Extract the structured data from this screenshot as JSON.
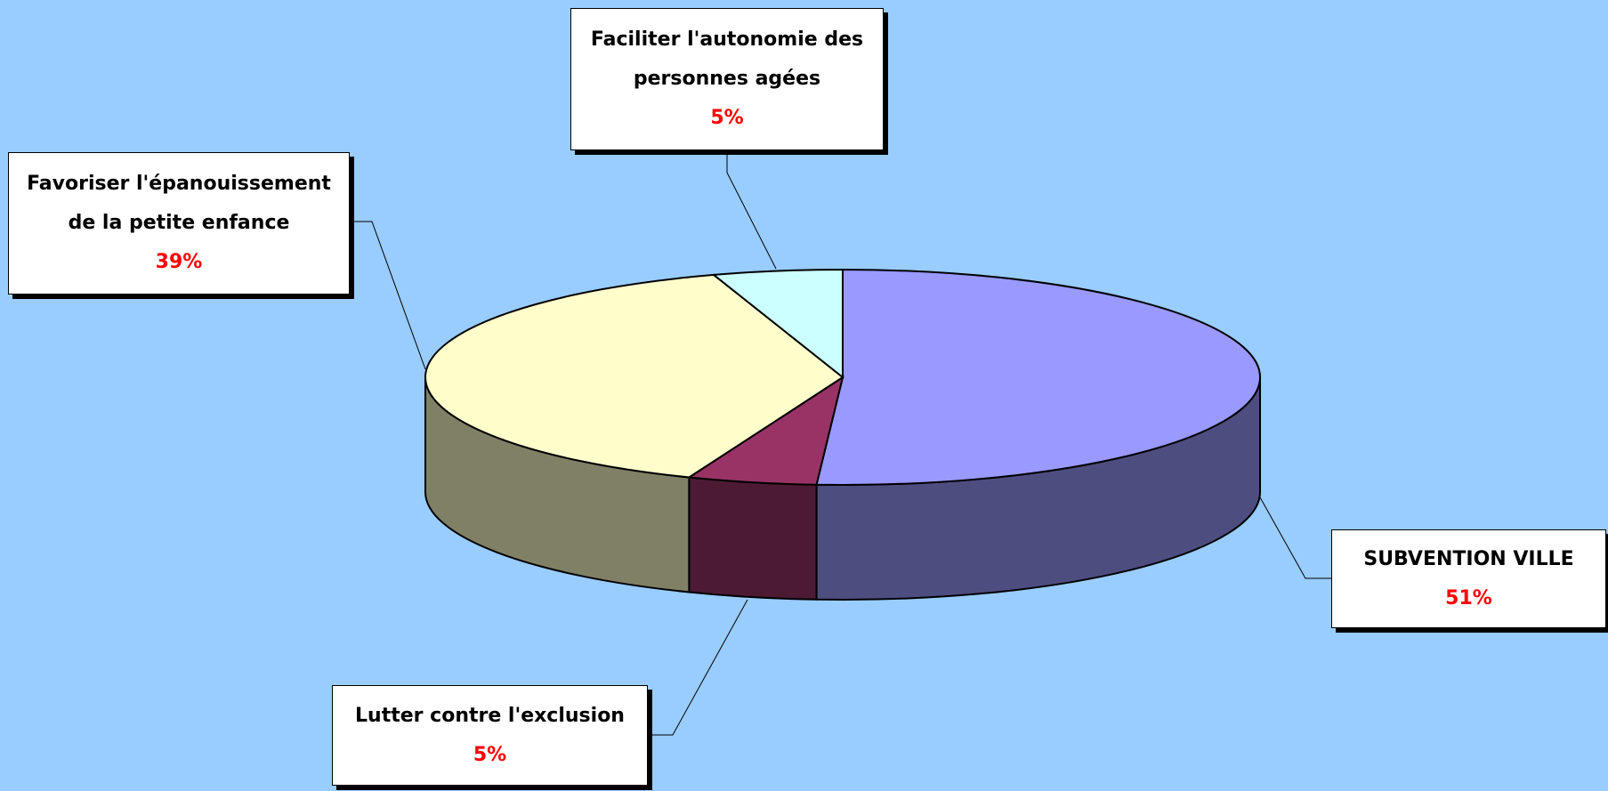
{
  "chart_data": {
    "type": "pie",
    "categories": [
      "SUBVENTION VILLE",
      "Lutter contre l'exclusion",
      "Favoriser l'épanouissement de la petite enfance",
      "Faciliter l'autonomie des personnes agées"
    ],
    "values": [
      51,
      5,
      39,
      5
    ],
    "value_labels": [
      "51%",
      "5%",
      "39%",
      "5%"
    ],
    "colors": [
      "#9999ff",
      "#993366",
      "#ffffcc",
      "#ccffff"
    ]
  }
}
